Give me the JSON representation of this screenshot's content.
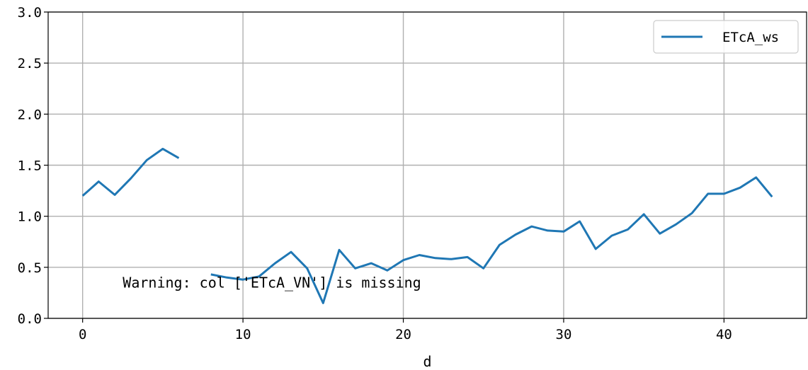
{
  "chart_data": {
    "type": "line",
    "xlabel": "d",
    "ylabel": "",
    "xlim": [
      -2.15,
      45.15
    ],
    "ylim": [
      0.0,
      3.0
    ],
    "xticks": [
      0,
      10,
      20,
      30,
      40
    ],
    "yticks": [
      0.0,
      0.5,
      1.0,
      1.5,
      2.0,
      2.5,
      3.0
    ],
    "ytick_labels": [
      "0.0",
      "0.5",
      "1.0",
      "1.5",
      "2.0",
      "2.5",
      "3.0"
    ],
    "grid": true,
    "legend_position": "top-right",
    "series": [
      {
        "name": "ETcA_ws",
        "color": "#1f77b4",
        "x": [
          0,
          1,
          2,
          3,
          4,
          5,
          6,
          7,
          8,
          9,
          10,
          11,
          12,
          13,
          14,
          15,
          16,
          17,
          18,
          19,
          20,
          21,
          22,
          23,
          24,
          25,
          26,
          27,
          28,
          29,
          30,
          31,
          32,
          33,
          34,
          35,
          36,
          37,
          38,
          39,
          40,
          41,
          42,
          43
        ],
        "y": [
          1.2,
          1.34,
          1.21,
          1.37,
          1.55,
          1.66,
          1.57,
          null,
          0.43,
          0.4,
          0.38,
          0.41,
          0.54,
          0.65,
          0.49,
          0.15,
          0.67,
          0.49,
          0.54,
          0.47,
          0.57,
          0.62,
          0.59,
          0.58,
          0.6,
          0.49,
          0.72,
          0.82,
          0.9,
          0.86,
          0.85,
          0.95,
          0.68,
          0.81,
          0.87,
          1.02,
          0.83,
          0.92,
          1.03,
          1.22,
          1.22,
          1.28,
          1.38,
          1.19
        ]
      }
    ],
    "annotations": [
      {
        "text": "Warning: col ['ETcA_VN'] is missing",
        "x": 2.5,
        "y": 0.35
      }
    ]
  }
}
